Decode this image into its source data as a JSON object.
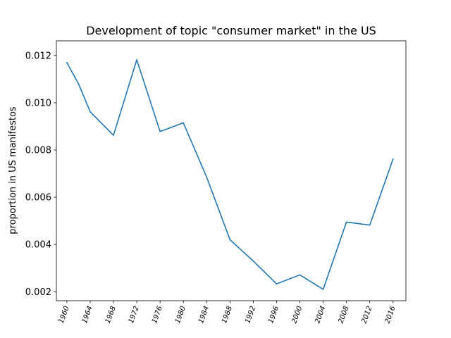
{
  "chart_data": {
    "type": "line",
    "title": "Development of topic \"consumer market\" in the US",
    "xlabel": "",
    "ylabel": "proportion in US manifestos",
    "x": [
      1960,
      1962,
      1964,
      1968,
      1972,
      1976,
      1980,
      1984,
      1988,
      1992,
      1996,
      2000,
      2004,
      2008,
      2012,
      2016
    ],
    "x_ticks": [
      "1960",
      "1964",
      "1968",
      "1972",
      "1976",
      "1980",
      "1984",
      "1988",
      "1992",
      "1996",
      "2000",
      "2004",
      "2008",
      "2012",
      "2016"
    ],
    "y_ticks": [
      "0.002",
      "0.004",
      "0.006",
      "0.008",
      "0.010",
      "0.012"
    ],
    "xlim": [
      1958.2,
      2018.2
    ],
    "ylim": [
      0.00162,
      0.01262
    ],
    "series": [
      {
        "values": [
          0.0117,
          0.0108,
          0.00962,
          0.00862,
          0.01182,
          0.00878,
          0.00915,
          0.00685,
          0.0042,
          0.0033,
          0.00233,
          0.00271,
          0.0021,
          0.00495,
          0.00482,
          0.00762
        ],
        "color": "#1f77b4"
      }
    ],
    "grid": false,
    "legend": "none"
  }
}
